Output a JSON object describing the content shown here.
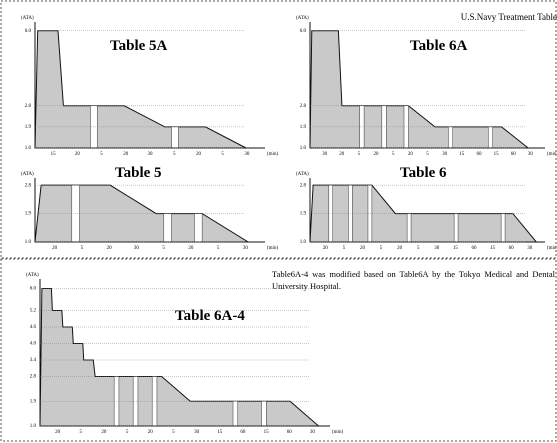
{
  "header": "U.S.Navy Treatment Table",
  "note": "Table6A-4 was modified based on Table6A by the Tokyo Medical and Dental University Hospital.",
  "chart_data": [
    {
      "type": "area",
      "title": "Table 5A",
      "ylabel": "(ATA)",
      "xlabel": "(min)",
      "x": [
        0,
        2,
        17,
        21,
        66,
        96,
        126,
        156
      ],
      "values": [
        1.0,
        6.0,
        6.0,
        2.8,
        2.8,
        1.9,
        1.9,
        1.0
      ],
      "xlim": [
        0,
        170
      ],
      "ylim": [
        1.0,
        6.2
      ],
      "yticks": [
        {
          "value": 1,
          "label": "1.0"
        },
        1.9,
        2.8,
        {
          "value": 6,
          "label": "6.0"
        }
      ],
      "air_breaks": [
        41,
        101
      ],
      "color": "#c9c9c9",
      "duration_labels": [
        "15",
        "20",
        "5",
        "20",
        "30",
        "5",
        "20",
        "5",
        "30"
      ]
    },
    {
      "type": "area",
      "title": "Table 6A",
      "ylabel": "(ATA)",
      "xlabel": "(min)",
      "x": [
        0,
        2,
        32,
        36,
        111,
        141,
        216,
        246
      ],
      "values": [
        1.0,
        6.0,
        6.0,
        2.8,
        2.8,
        1.9,
        1.9,
        1.0
      ],
      "xlim": [
        0,
        265
      ],
      "ylim": [
        1.0,
        6.2
      ],
      "yticks": [
        {
          "value": 1,
          "label": "1.0"
        },
        1.9,
        2.8,
        {
          "value": 6,
          "label": "6.0"
        }
      ],
      "air_breaks": [
        56,
        81,
        106,
        156,
        201
      ],
      "color": "#c9c9c9",
      "duration_labels": [
        "30",
        "20",
        "5",
        "20",
        "5",
        "20",
        "5",
        "30",
        "15",
        "60",
        "15",
        "60",
        "30"
      ]
    },
    {
      "type": "area",
      "title": "Table 5",
      "ylabel": "(ATA)",
      "xlabel": "(min)",
      "x": [
        0,
        4,
        49,
        79,
        109,
        139
      ],
      "values": [
        1.0,
        2.8,
        2.8,
        1.9,
        1.9,
        1.0
      ],
      "xlim": [
        0,
        150
      ],
      "ylim": [
        1.0,
        2.9
      ],
      "yticks": [
        {
          "value": 1,
          "label": "1.0"
        },
        1.9,
        2.8
      ],
      "air_breaks": [
        24,
        84,
        104
      ],
      "color": "#c9c9c9",
      "duration_labels": [
        "20",
        "5",
        "20",
        "30",
        "5",
        "20",
        "5",
        "30"
      ]
    },
    {
      "type": "area",
      "title": "Table 6",
      "ylabel": "(ATA)",
      "xlabel": "(min)",
      "x": [
        0,
        4,
        79,
        109,
        259,
        289
      ],
      "values": [
        1.0,
        2.8,
        2.8,
        1.9,
        1.9,
        1.0
      ],
      "xlim": [
        0,
        300
      ],
      "ylim": [
        1.0,
        2.9
      ],
      "yticks": [
        {
          "value": 1,
          "label": "1.0"
        },
        1.9,
        2.8
      ],
      "air_breaks": [
        24,
        49,
        74,
        124,
        184,
        244
      ],
      "color": "#c9c9c9",
      "duration_labels": [
        "20",
        "5",
        "20",
        "5",
        "20",
        "5",
        "30",
        "15",
        "60",
        "15",
        "60",
        "30"
      ]
    },
    {
      "type": "area",
      "title": "Table 6A-4",
      "ylabel": "(ATA)",
      "xlabel": "(min)",
      "x": [
        0,
        2,
        12,
        13,
        23,
        24,
        34,
        35,
        45,
        46,
        56,
        58,
        128,
        158,
        263,
        293
      ],
      "values": [
        1.0,
        6.0,
        6.0,
        5.2,
        5.2,
        4.6,
        4.6,
        4.0,
        4.0,
        3.4,
        3.4,
        2.8,
        2.8,
        1.9,
        1.9,
        1.0
      ],
      "xlim": [
        0,
        305
      ],
      "ylim": [
        1.0,
        6.2
      ],
      "yticks": [
        {
          "value": 1,
          "label": "1.0"
        },
        1.9,
        2.8,
        3.4,
        {
          "value": 4,
          "label": "4.0"
        },
        4.6,
        5.2,
        {
          "value": 6,
          "label": "6.0"
        }
      ],
      "air_breaks": [
        78,
        98,
        118,
        203,
        233
      ],
      "color": "#c9c9c9",
      "duration_labels": [
        "20",
        "5",
        "20",
        "5",
        "20",
        "5",
        "30",
        "15",
        "60",
        "15",
        "60",
        "30"
      ]
    }
  ]
}
